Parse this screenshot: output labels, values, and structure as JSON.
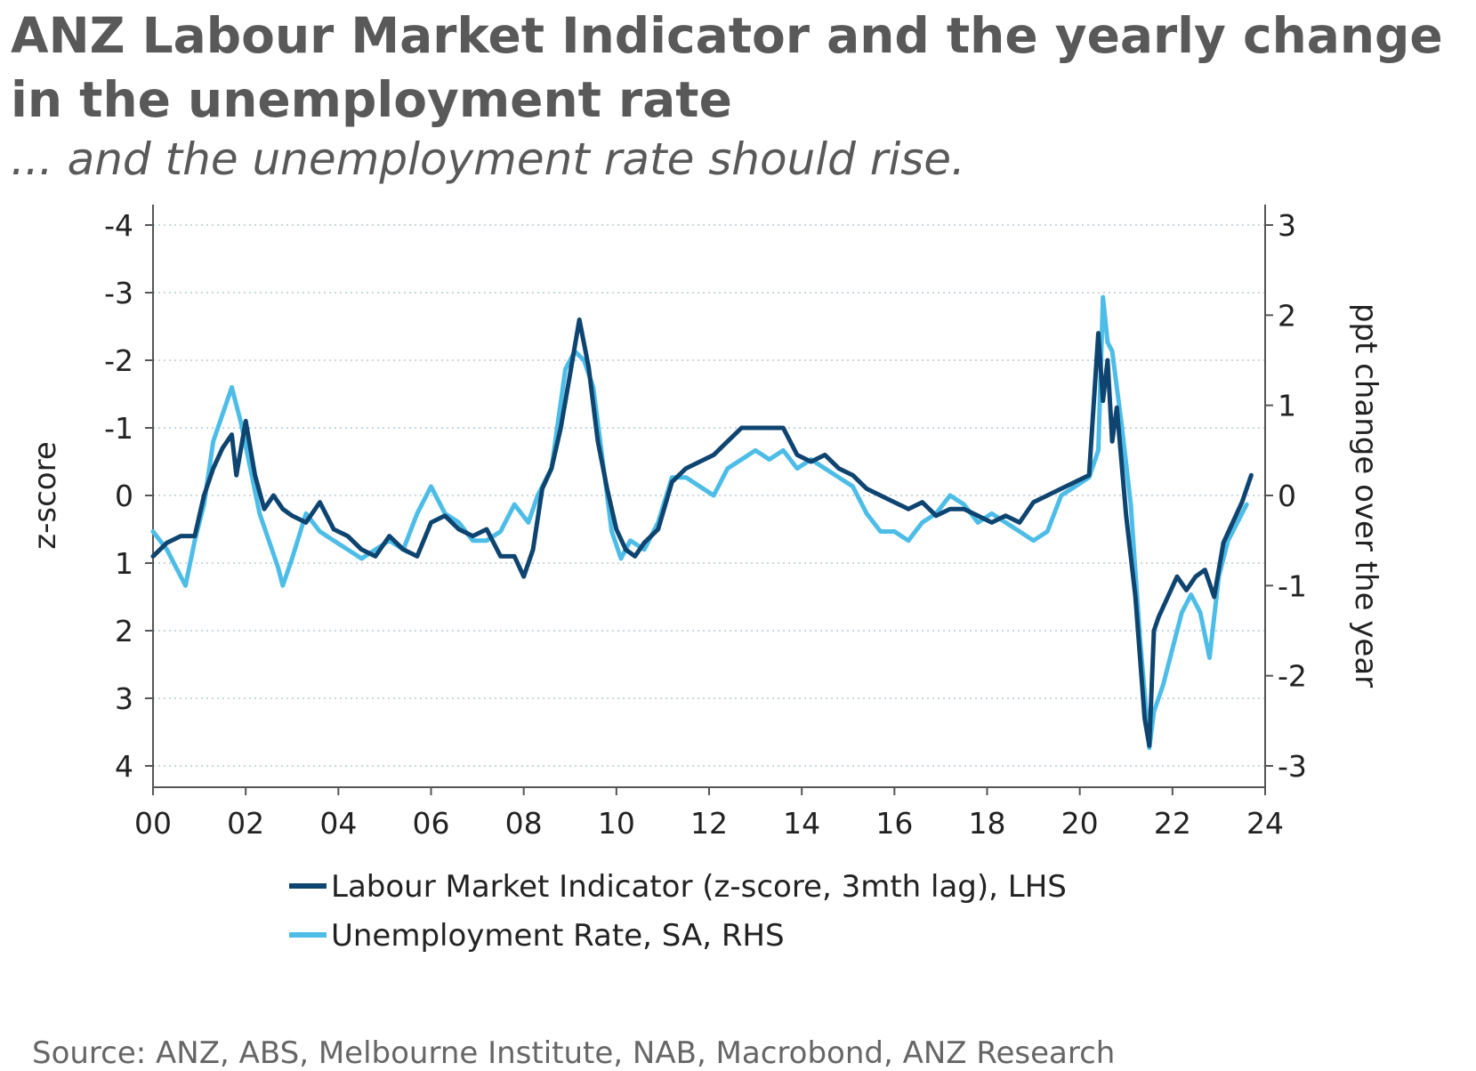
{
  "header": {
    "title": "ANZ Labour Market Indicator and the yearly change in the unemployment rate",
    "subtitle": "... and the unemployment rate should rise."
  },
  "source": "Source: ANZ, ABS, Melbourne Institute, NAB, Macrobond, ANZ Research",
  "chart_data": {
    "type": "line",
    "title": "ANZ Labour Market Indicator and the yearly change in the unemployment rate",
    "ylabel_left": "z-score",
    "ylabel_right": "ppt change over the year",
    "xlabel": "",
    "xlim": [
      2000,
      2024
    ],
    "ylim_left": [
      -4,
      4
    ],
    "ylim_right": [
      3,
      -3
    ],
    "y_left_inverted": true,
    "x_ticks": [
      2000,
      2002,
      2004,
      2006,
      2008,
      2010,
      2012,
      2014,
      2016,
      2018,
      2020,
      2022,
      2024
    ],
    "x_tick_labels": [
      "00",
      "02",
      "04",
      "06",
      "08",
      "10",
      "12",
      "14",
      "16",
      "18",
      "20",
      "22",
      "24"
    ],
    "y_left_ticks": [
      -4,
      -3,
      -2,
      -1,
      0,
      1,
      2,
      3,
      4
    ],
    "y_left_tick_labels": [
      "-4",
      "-3",
      "-2",
      "-1",
      "0",
      "1",
      "2",
      "3",
      "4"
    ],
    "y_right_ticks": [
      3,
      2,
      1,
      0,
      -1,
      -2,
      -3
    ],
    "y_right_tick_labels": [
      "3",
      "2",
      "1",
      "0",
      "-1",
      "-2",
      "-3"
    ],
    "grid": "horizontal dotted",
    "legend_position": "bottom-center",
    "colors": {
      "lmi": "#0e4470",
      "ur": "#4dbde8",
      "grid": "#b9c9d3",
      "axis": "#555555"
    },
    "series": [
      {
        "name": "Labour Market Indicator (z-score, 3mth lag), LHS",
        "axis": "left",
        "x": [
          2000.0,
          2000.3,
          2000.6,
          2000.9,
          2001.1,
          2001.3,
          2001.5,
          2001.7,
          2001.8,
          2002.0,
          2002.2,
          2002.4,
          2002.6,
          2002.8,
          2003.0,
          2003.3,
          2003.6,
          2003.9,
          2004.2,
          2004.5,
          2004.8,
          2005.1,
          2005.4,
          2005.7,
          2006.0,
          2006.3,
          2006.6,
          2006.9,
          2007.2,
          2007.5,
          2007.8,
          2008.0,
          2008.2,
          2008.4,
          2008.6,
          2008.8,
          2009.0,
          2009.2,
          2009.4,
          2009.6,
          2009.8,
          2010.0,
          2010.2,
          2010.4,
          2010.6,
          2010.9,
          2011.2,
          2011.5,
          2011.8,
          2012.1,
          2012.4,
          2012.7,
          2013.0,
          2013.3,
          2013.6,
          2013.9,
          2014.2,
          2014.5,
          2014.8,
          2015.1,
          2015.4,
          2015.7,
          2016.0,
          2016.3,
          2016.6,
          2016.9,
          2017.2,
          2017.5,
          2017.8,
          2018.1,
          2018.4,
          2018.7,
          2019.0,
          2019.3,
          2019.6,
          2019.9,
          2020.2,
          2020.4,
          2020.5,
          2020.6,
          2020.7,
          2020.8,
          2021.0,
          2021.2,
          2021.4,
          2021.5,
          2021.6,
          2021.7,
          2021.9,
          2022.1,
          2022.3,
          2022.5,
          2022.7,
          2022.9,
          2023.1,
          2023.3,
          2023.5,
          2023.7
        ],
        "values": [
          0.9,
          0.7,
          0.6,
          0.6,
          0.0,
          -0.4,
          -0.7,
          -0.9,
          -0.3,
          -1.1,
          -0.3,
          0.2,
          0.0,
          0.2,
          0.3,
          0.4,
          0.1,
          0.5,
          0.6,
          0.8,
          0.9,
          0.6,
          0.8,
          0.9,
          0.4,
          0.3,
          0.5,
          0.6,
          0.5,
          0.9,
          0.9,
          1.2,
          0.8,
          -0.1,
          -0.4,
          -1.0,
          -1.8,
          -2.6,
          -1.9,
          -0.8,
          -0.1,
          0.5,
          0.8,
          0.9,
          0.7,
          0.5,
          -0.2,
          -0.4,
          -0.5,
          -0.6,
          -0.8,
          -1.0,
          -1.0,
          -1.0,
          -1.0,
          -0.6,
          -0.5,
          -0.6,
          -0.4,
          -0.3,
          -0.1,
          0.0,
          0.1,
          0.2,
          0.1,
          0.3,
          0.2,
          0.2,
          0.3,
          0.4,
          0.3,
          0.4,
          0.1,
          0.0,
          -0.1,
          -0.2,
          -0.3,
          -2.4,
          -1.4,
          -2.0,
          -0.8,
          -1.3,
          0.3,
          1.5,
          3.3,
          3.7,
          2.0,
          1.8,
          1.5,
          1.2,
          1.4,
          1.2,
          1.1,
          1.5,
          0.7,
          0.4,
          0.1,
          -0.3
        ]
      },
      {
        "name": "Unemployment Rate, SA, RHS",
        "axis": "right",
        "x": [
          2000.0,
          2000.3,
          2000.5,
          2000.7,
          2000.9,
          2001.1,
          2001.3,
          2001.5,
          2001.7,
          2001.9,
          2002.1,
          2002.3,
          2002.5,
          2002.7,
          2002.8,
          2003.0,
          2003.3,
          2003.6,
          2003.9,
          2004.2,
          2004.5,
          2004.8,
          2005.1,
          2005.4,
          2005.7,
          2006.0,
          2006.3,
          2006.6,
          2006.9,
          2007.2,
          2007.5,
          2007.8,
          2008.1,
          2008.3,
          2008.6,
          2008.9,
          2009.1,
          2009.3,
          2009.5,
          2009.7,
          2009.9,
          2010.1,
          2010.3,
          2010.6,
          2010.9,
          2011.2,
          2011.5,
          2011.8,
          2012.1,
          2012.4,
          2012.7,
          2013.0,
          2013.3,
          2013.6,
          2013.9,
          2014.2,
          2014.5,
          2014.8,
          2015.1,
          2015.4,
          2015.7,
          2016.0,
          2016.3,
          2016.6,
          2016.9,
          2017.2,
          2017.5,
          2017.8,
          2018.1,
          2018.4,
          2018.7,
          2019.0,
          2019.3,
          2019.6,
          2019.9,
          2020.2,
          2020.4,
          2020.5,
          2020.6,
          2020.7,
          2020.9,
          2021.1,
          2021.3,
          2021.5,
          2021.6,
          2021.8,
          2022.0,
          2022.2,
          2022.4,
          2022.6,
          2022.8,
          2023.0,
          2023.2,
          2023.4,
          2023.6
        ],
        "values": [
          -0.4,
          -0.6,
          -0.8,
          -1.0,
          -0.5,
          -0.1,
          0.6,
          0.9,
          1.2,
          0.8,
          0.3,
          -0.2,
          -0.5,
          -0.8,
          -1.0,
          -0.7,
          -0.2,
          -0.4,
          -0.5,
          -0.6,
          -0.7,
          -0.6,
          -0.5,
          -0.6,
          -0.2,
          0.1,
          -0.2,
          -0.3,
          -0.5,
          -0.5,
          -0.4,
          -0.1,
          -0.3,
          0.0,
          0.3,
          1.4,
          1.6,
          1.5,
          1.2,
          0.4,
          -0.4,
          -0.7,
          -0.5,
          -0.6,
          -0.3,
          0.2,
          0.2,
          0.1,
          0.0,
          0.3,
          0.4,
          0.5,
          0.4,
          0.5,
          0.3,
          0.4,
          0.3,
          0.2,
          0.1,
          -0.2,
          -0.4,
          -0.4,
          -0.5,
          -0.3,
          -0.2,
          0.0,
          -0.1,
          -0.3,
          -0.2,
          -0.3,
          -0.4,
          -0.5,
          -0.4,
          0.0,
          0.1,
          0.2,
          0.5,
          2.2,
          1.7,
          1.6,
          0.8,
          -0.1,
          -1.6,
          -2.8,
          -2.4,
          -2.1,
          -1.7,
          -1.3,
          -1.1,
          -1.3,
          -1.8,
          -0.9,
          -0.5,
          -0.3,
          -0.1
        ]
      }
    ]
  }
}
